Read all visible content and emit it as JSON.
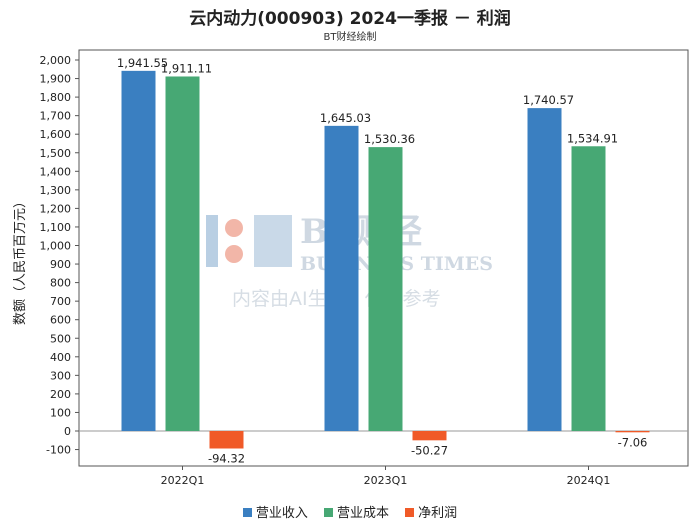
{
  "header": {
    "title": "云内动力(000903) 2024一季报 － 利润",
    "subtitle": "BT财经绘制"
  },
  "watermark": {
    "brand_cn": "BT财经",
    "brand_en": "BUSINESS TIMES",
    "note": "内容由AI生成，仅供参考"
  },
  "chart_data": {
    "type": "bar",
    "title": "云内动力(000903) 2024一季报 － 利润",
    "subtitle": "BT财经绘制",
    "xlabel": "",
    "ylabel": "数额（人民币百万元）",
    "ylim": [
      -150,
      2000
    ],
    "yticks": [
      -100,
      0,
      100,
      200,
      300,
      400,
      500,
      600,
      700,
      800,
      900,
      1000,
      1100,
      1200,
      1300,
      1400,
      1500,
      1600,
      1700,
      1800,
      1900,
      2000
    ],
    "ytick_labels": [
      "-100",
      "0",
      "100",
      "200",
      "300",
      "400",
      "500",
      "600",
      "700",
      "800",
      "900",
      "1,000",
      "1,100",
      "1,200",
      "1,300",
      "1,400",
      "1,500",
      "1,600",
      "1,700",
      "1,800",
      "1,900",
      "2,000"
    ],
    "categories": [
      "2022Q1",
      "2023Q1",
      "2024Q1"
    ],
    "series": [
      {
        "name": "营业收入",
        "color": "#3a7fc1",
        "values": [
          1941.55,
          1645.03,
          1740.57
        ],
        "labels": [
          "1,941.55",
          "1,645.03",
          "1,740.57"
        ]
      },
      {
        "name": "营业成本",
        "color": "#47a874",
        "values": [
          1911.11,
          1530.36,
          1534.91
        ],
        "labels": [
          "1,911.11",
          "1,530.36",
          "1,534.91"
        ]
      },
      {
        "name": "净利润",
        "color": "#f05a28",
        "values": [
          -94.32,
          -50.27,
          -7.06
        ],
        "labels": [
          "-94.32",
          "-50.27",
          "-7.06"
        ]
      }
    ],
    "grid": false,
    "legend": "bottom"
  }
}
